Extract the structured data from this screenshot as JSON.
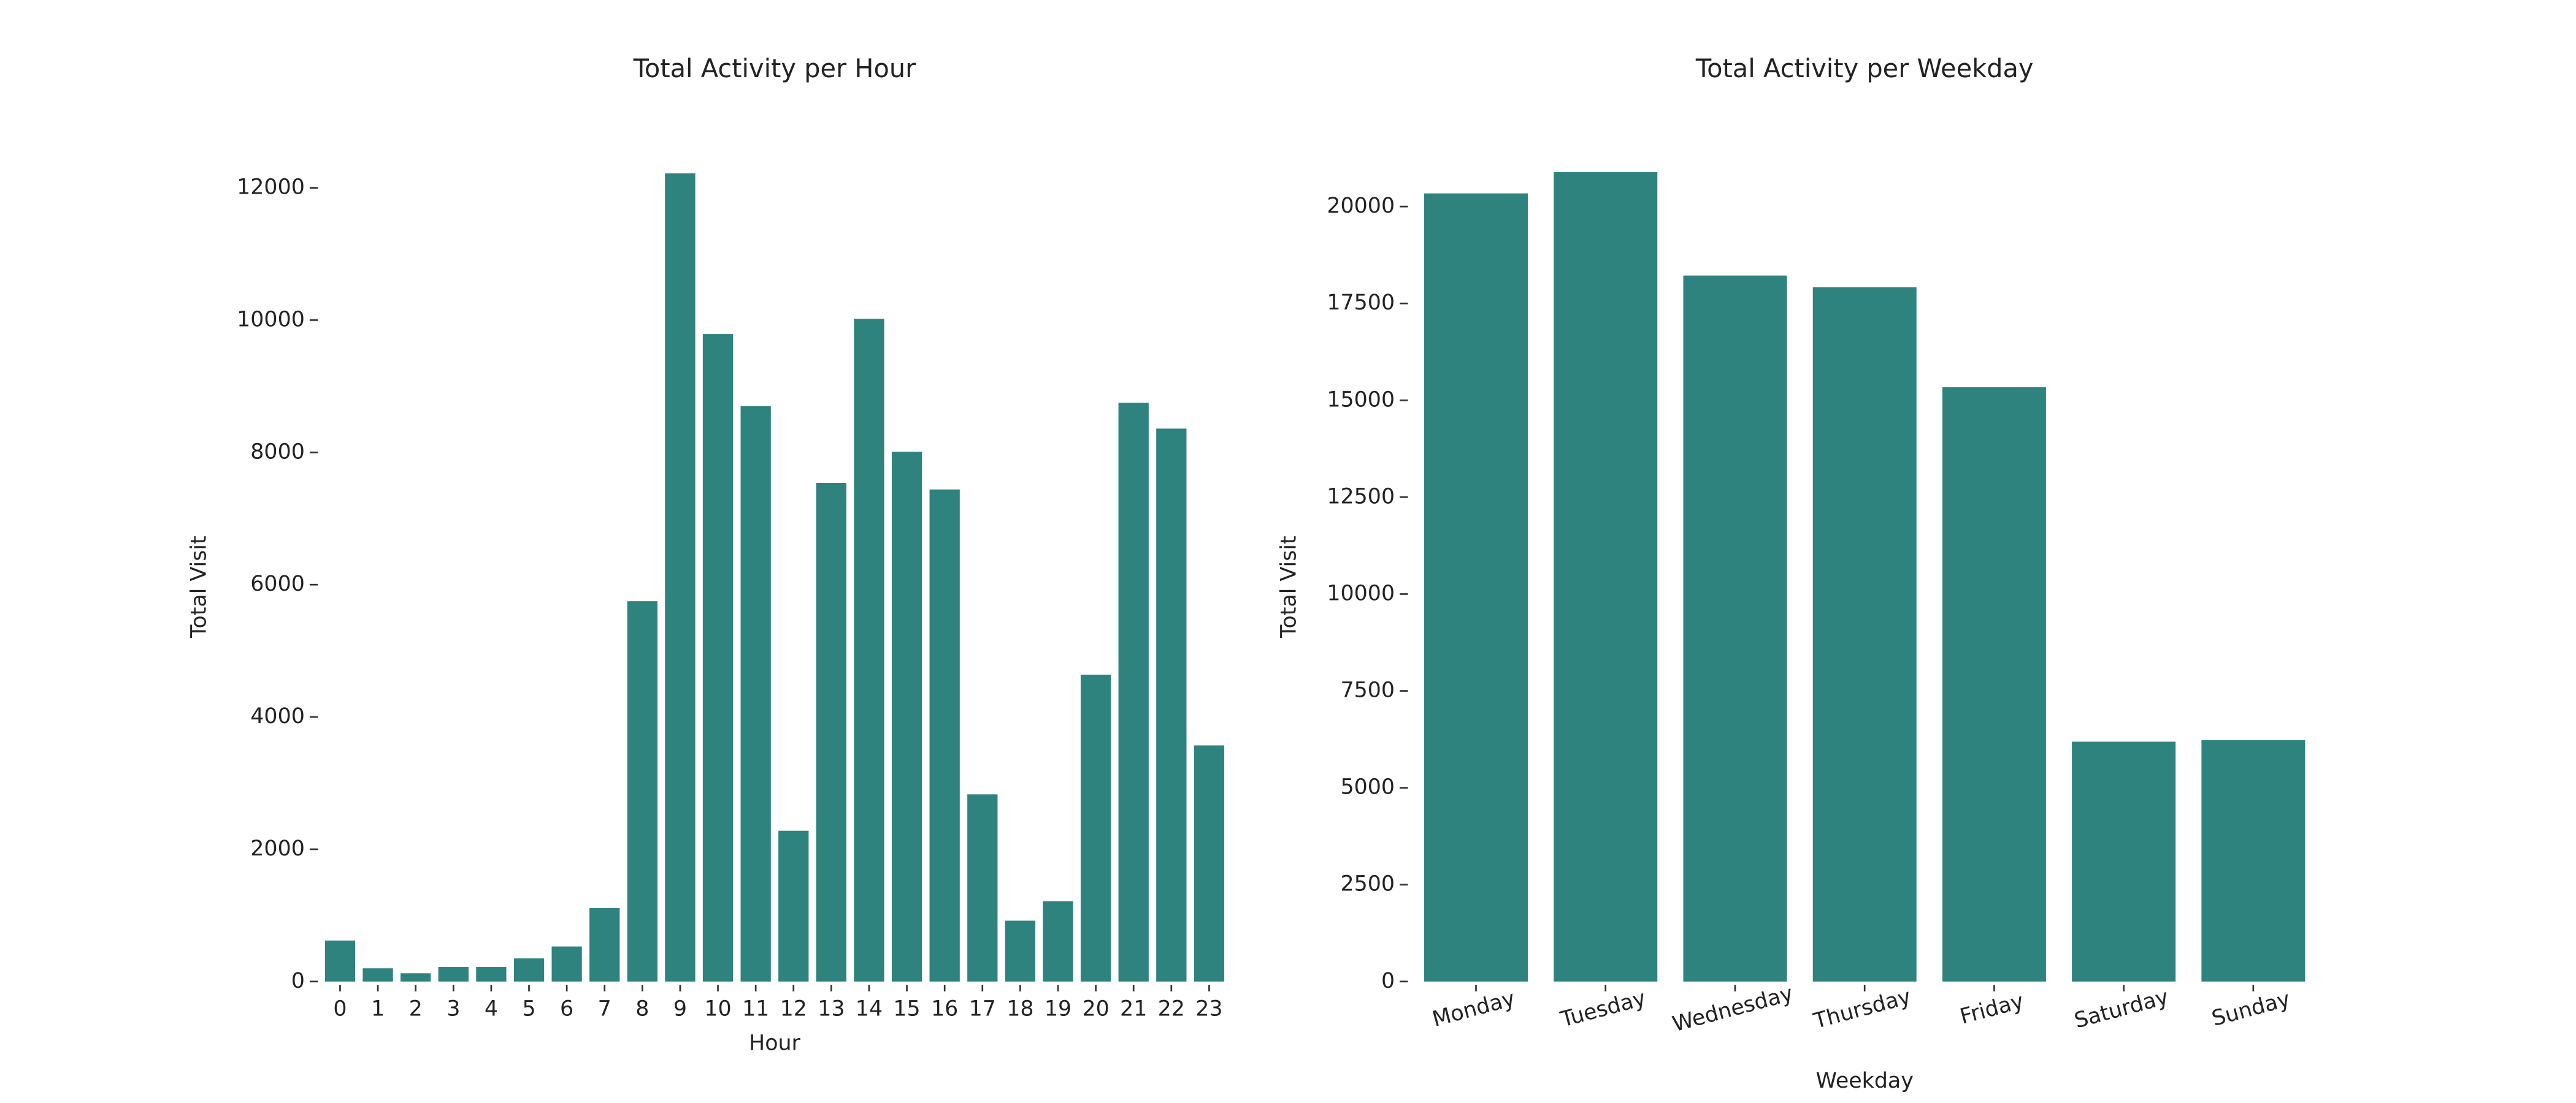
{
  "chart_data": [
    {
      "type": "bar",
      "title": "Total Activity per Hour",
      "x_label": "Hour",
      "y_label": "Total Visit",
      "categories": [
        "0",
        "1",
        "2",
        "3",
        "4",
        "5",
        "6",
        "7",
        "8",
        "9",
        "10",
        "11",
        "12",
        "13",
        "14",
        "15",
        "16",
        "17",
        "18",
        "19",
        "20",
        "21",
        "22",
        "23"
      ],
      "values": [
        620,
        200,
        125,
        220,
        220,
        350,
        530,
        1110,
        5750,
        12220,
        9790,
        8700,
        2280,
        7540,
        10020,
        8010,
        7440,
        2830,
        920,
        1215,
        4640,
        8750,
        8360,
        3570
      ],
      "color": "#2e837e",
      "ylim": [
        0,
        12830
      ],
      "yticks": [
        0,
        2000,
        4000,
        6000,
        8000,
        10000,
        12000
      ],
      "grid": false,
      "x_label_rotation": 0
    },
    {
      "type": "bar",
      "title": "Total Activity per Weekday",
      "x_label": "Weekday",
      "y_label": "Total Visit",
      "categories": [
        "Monday",
        "Tuesday",
        "Wednesday",
        "Thursday",
        "Friday",
        "Saturday",
        "Sunday"
      ],
      "values": [
        20340,
        20890,
        18220,
        17920,
        15340,
        6190,
        6230
      ],
      "color": "#2e837e",
      "ylim": [
        0,
        21900
      ],
      "yticks": [
        0,
        2500,
        5000,
        7500,
        10000,
        12500,
        15000,
        17500,
        20000
      ],
      "grid": false,
      "x_label_rotation": -15
    }
  ]
}
